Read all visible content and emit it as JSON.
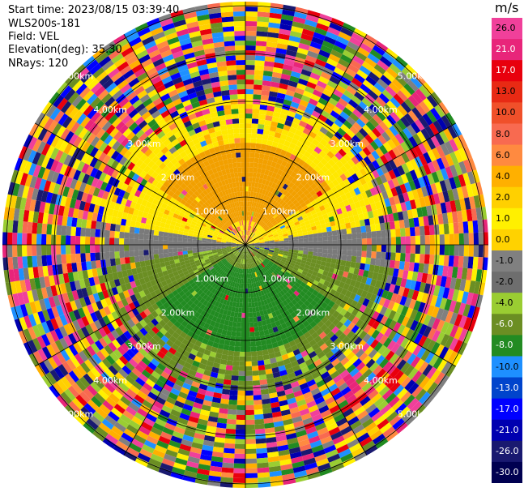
{
  "header": {
    "start_time": "Start time: 2023/08/15 03:39:40",
    "instrument": "WLS200s-181",
    "field": "Field: VEL",
    "elevation": "Elevation(deg): 35.30",
    "nrays": "NRays: 120"
  },
  "range_labels": [
    "1.00km",
    "2.00km",
    "3.00km",
    "4.00km",
    "5.00km"
  ],
  "colorbar": {
    "unit": "m/s",
    "ticks": [
      "26.0",
      "21.0",
      "17.0",
      "13.0",
      "10.0",
      "8.0",
      "6.0",
      "4.0",
      "2.0",
      "1.0",
      "0.0",
      "-1.0",
      "-2.0",
      "-4.0",
      "-6.0",
      "-8.0",
      "-10.0",
      "-13.0",
      "-17.0",
      "-21.0",
      "-26.0",
      "-30.0"
    ],
    "colors": [
      "#f0409a",
      "#e8257a",
      "#e8000d",
      "#e82a14",
      "#f0502a",
      "#f86a50",
      "#ff8a40",
      "#ffb000",
      "#ffd000",
      "#fff000",
      "#ffd200",
      "#808080",
      "#6e6e6e",
      "#9acd32",
      "#6b8e23",
      "#228b22",
      "#1e90ff",
      "#0044cc",
      "#0000ff",
      "#0000b0",
      "#191970",
      "#000050"
    ]
  },
  "colors": {
    "upwind_near": "#f2a000",
    "upwind_far": "#ffe800",
    "zero": "#7a7a7a",
    "downwind_near": "#6b8e23",
    "downwind_core": "#228b22"
  }
}
